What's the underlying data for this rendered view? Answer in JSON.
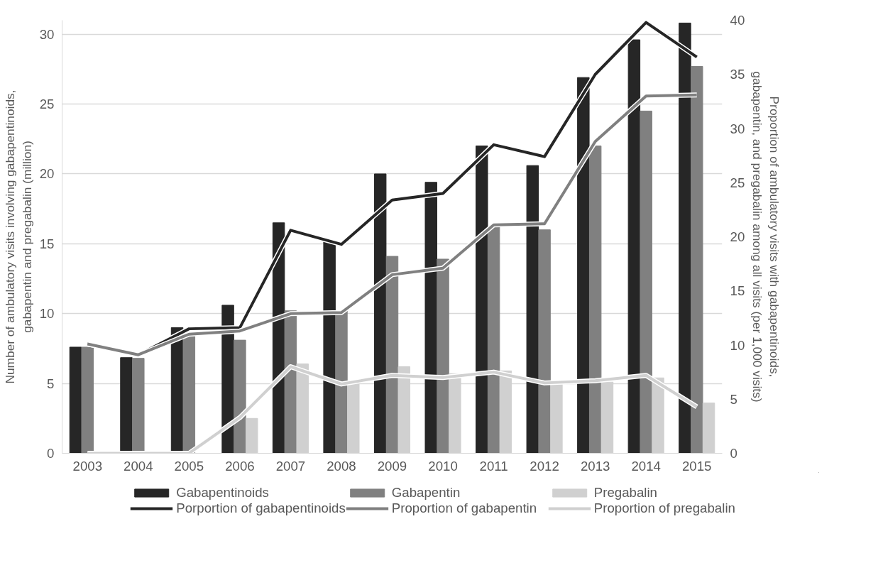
{
  "chart_data": {
    "type": "bar",
    "categories": [
      "2003",
      "2004",
      "2005",
      "2006",
      "2007",
      "2008",
      "2009",
      "2010",
      "2011",
      "2012",
      "2013",
      "2014",
      "2015"
    ],
    "series": [
      {
        "name": "Gabapentinoids",
        "color": "#262626",
        "values": [
          7.6,
          6.85,
          9.0,
          10.6,
          16.5,
          15.2,
          20.0,
          19.4,
          22.0,
          20.6,
          26.9,
          29.6,
          30.8
        ]
      },
      {
        "name": "Gabapentin",
        "color": "#808080",
        "values": [
          7.6,
          6.8,
          8.6,
          8.1,
          10.2,
          10.2,
          14.1,
          13.9,
          16.2,
          16.0,
          22.0,
          24.5,
          27.7
        ]
      },
      {
        "name": "Pregabalin",
        "color": "#d0d0d0",
        "values": [
          0,
          0,
          0,
          2.5,
          6.4,
          5.0,
          6.2,
          5.7,
          5.9,
          5.1,
          5.1,
          5.4,
          3.6
        ]
      },
      {
        "name": "Porportion of gabapentinoids",
        "type": "line",
        "axis": "y2",
        "color": "#262626",
        "values": [
          10.1,
          9.1,
          11.5,
          11.6,
          20.6,
          19.3,
          23.4,
          24.0,
          28.5,
          27.4,
          35.0,
          39.8,
          36.6
        ]
      },
      {
        "name": "Proportion of gabapentin",
        "type": "line",
        "axis": "y2",
        "color": "#808080",
        "values": [
          10.1,
          9.1,
          11.0,
          11.3,
          12.9,
          13.0,
          16.5,
          17.1,
          21.1,
          21.2,
          28.8,
          33.0,
          33.1
        ]
      },
      {
        "name": "Proportion of pregabalin",
        "type": "line",
        "axis": "y2",
        "color": "#d0d0d0",
        "values": [
          0,
          0,
          0,
          3.3,
          8.0,
          6.4,
          7.2,
          7.0,
          7.5,
          6.5,
          6.7,
          7.2,
          4.3
        ]
      }
    ],
    "ylabel": "Number of ambulatory visits involving gabapentinoids, gabapentin and pregabalin (million)",
    "y2label": "Proportion of ambulatory visits with gabapentinoids, gabapentin, and pregabalin among all visits (per 1,000 visits)",
    "ylim": [
      0,
      31
    ],
    "yticks": [
      0,
      5,
      10,
      15,
      20,
      25,
      30
    ],
    "y2lim": [
      0,
      40
    ],
    "y2ticks": [
      0,
      5,
      10,
      15,
      20,
      25,
      30,
      35,
      40
    ],
    "grid": "y",
    "legend": "bottom"
  }
}
